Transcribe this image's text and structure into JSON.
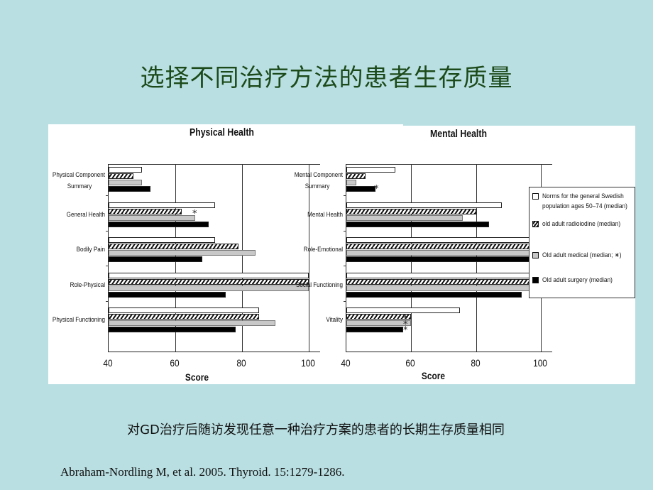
{
  "slide": {
    "title": "选择不同治疗方法的患者生存质量",
    "caption": "对GD治疗后随访发现任意一种治疗方案的患者的长期生存质量相同",
    "citation": "Abraham-Nordling M, et al. 2005. Thyroid. 15:1279-1286.",
    "background_color": "#b9dfe2",
    "title_color": "#1d4a1a"
  },
  "legend": {
    "items": [
      {
        "label_line1": "Norms for the general Swedish",
        "label_line2": "population ages 50–74 (median)",
        "swatch": "white-icon"
      },
      {
        "label_line1": "old adult radioiodine (median)",
        "label_line2": "",
        "swatch": "hatched-icon"
      },
      {
        "label_line1": "Old adult medical (median; ∗)",
        "label_line2": "",
        "swatch": "gray-icon"
      },
      {
        "label_line1": "Old adult surgery (median)",
        "label_line2": "",
        "swatch": "black-icon"
      }
    ]
  },
  "chart_data": [
    {
      "type": "bar",
      "orientation": "horizontal",
      "title": "Physical Health",
      "xlabel": "Score",
      "ylabel": "",
      "xlim": [
        40,
        100
      ],
      "xticks": [
        "40",
        "60",
        "80",
        "100"
      ],
      "grid": true,
      "categories": [
        "Physical Component Summary",
        "General Health",
        "Bodily Pain",
        "Role-Physical",
        "Physical Functioning"
      ],
      "category_lines": [
        [
          "Physical  Component",
          "Summary"
        ],
        [
          "General Health"
        ],
        [
          "Bodily Pain"
        ],
        [
          "Role-Physical"
        ],
        [
          "Physical Functioning"
        ]
      ],
      "series": [
        {
          "name": "Norms for the general Swedish population ages 50–74 (median)",
          "values": [
            50,
            72,
            72,
            100,
            85
          ]
        },
        {
          "name": "old adult radioiodine (median)",
          "values": [
            47.5,
            62,
            79,
            100,
            85
          ]
        },
        {
          "name": "Old adult medical (median; *)",
          "values": [
            50,
            66,
            84,
            100,
            90
          ]
        },
        {
          "name": "Old adult surgery (median)",
          "values": [
            52.5,
            70,
            68,
            75,
            78
          ]
        }
      ],
      "annotations": [
        {
          "category": "General Health",
          "text": "*"
        }
      ]
    },
    {
      "type": "bar",
      "orientation": "horizontal",
      "title": "Mental Health",
      "xlabel": "Score",
      "ylabel": "",
      "xlim": [
        40,
        100
      ],
      "xticks": [
        "40",
        "60",
        "80",
        "100"
      ],
      "grid": true,
      "categories": [
        "Mental Component Summary",
        "Mental Health",
        "Role-Emotional",
        "Social Functioning",
        "Vitality"
      ],
      "category_lines": [
        [
          "Mental  Component",
          "Summary"
        ],
        [
          "Mental Health"
        ],
        [
          "Role-Emotional"
        ],
        [
          "Social Functioning"
        ],
        [
          "Vitality"
        ]
      ],
      "series": [
        {
          "name": "Norms for the general Swedish population ages 50–74 (median)",
          "values": [
            55,
            88,
            100,
            100,
            75
          ]
        },
        {
          "name": "old adult radioiodine (median)",
          "values": [
            46,
            80,
            100,
            100,
            60
          ]
        },
        {
          "name": "Old adult medical (median; *)",
          "values": [
            43,
            76,
            100,
            100,
            60
          ]
        },
        {
          "name": "Old adult surgery (median)",
          "values": [
            49,
            84,
            100,
            94,
            57.5
          ]
        }
      ],
      "annotations": [
        {
          "category": "Mental Component Summary",
          "text": "*"
        },
        {
          "category": "Vitality",
          "text": "***"
        }
      ]
    }
  ]
}
